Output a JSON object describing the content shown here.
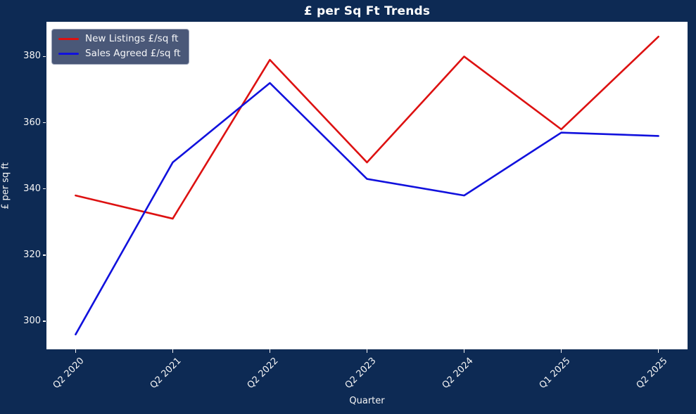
{
  "title": "£ per Sq Ft Trends",
  "colors": {
    "figure_background": "#0d2a54",
    "plot_background": "#ffffff",
    "new_listings_line": "#dd1111",
    "sales_agreed_line": "#1111dd",
    "legend_background": "#4a5878",
    "text": "#f5f5f5"
  },
  "chart_data": {
    "type": "line",
    "title": "£ per Sq Ft Trends",
    "xlabel": "Quarter",
    "ylabel": "£ per sq ft",
    "categories": [
      "Q2 2020",
      "Q2 2021",
      "Q2 2022",
      "Q2 2023",
      "Q2 2024",
      "Q1 2025",
      "Q2 2025"
    ],
    "series": [
      {
        "name": "New Listings £/sq ft",
        "color": "#dd1111",
        "values": [
          338,
          331,
          379,
          348,
          380,
          358,
          386
        ]
      },
      {
        "name": "Sales Agreed £/sq ft",
        "color": "#1111dd",
        "values": [
          296,
          348,
          372,
          343,
          338,
          357,
          356
        ]
      }
    ],
    "yticks": [
      300,
      320,
      340,
      360,
      380
    ],
    "ylim": [
      291.5,
      390.5
    ],
    "x_margin": 0.3,
    "grid": false,
    "legend_position": "upper left"
  }
}
